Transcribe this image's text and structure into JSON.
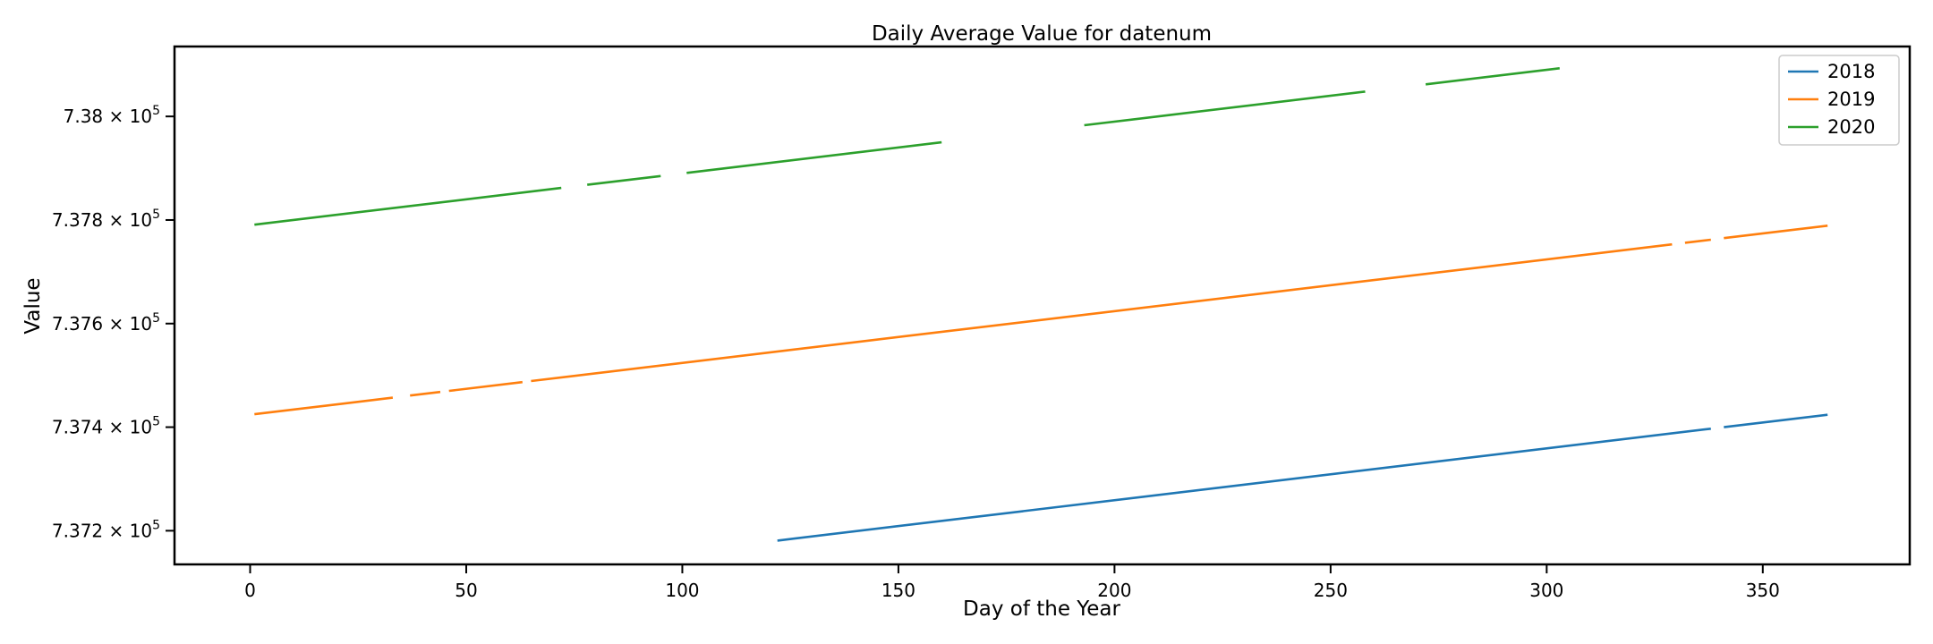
{
  "chart_data": {
    "type": "line",
    "title": "Daily Average Value for datenum",
    "xlabel": "Day of the Year",
    "ylabel": "Value",
    "xlim": [
      -17.5,
      384
    ],
    "ylim": [
      737135,
      738135
    ],
    "xticks": [
      0,
      50,
      100,
      150,
      200,
      250,
      300,
      350
    ],
    "yticks": [
      737200,
      737400,
      737600,
      737800,
      738000
    ],
    "ytick_labels": [
      {
        "mantissa": "7.372",
        "exponent": "5"
      },
      {
        "mantissa": "7.374",
        "exponent": "5"
      },
      {
        "mantissa": "7.376",
        "exponent": "5"
      },
      {
        "mantissa": "7.378",
        "exponent": "5"
      },
      {
        "mantissa": "7.38",
        "exponent": "5"
      }
    ],
    "ytick_prefix_times": "×",
    "ytick_base": "10",
    "legend_position": "top-right",
    "grid": false,
    "series": [
      {
        "name": "2018",
        "color": "#1f77b4",
        "segments": [
          {
            "x": [
              122,
              338
            ],
            "y": [
              737181,
              737397
            ]
          },
          {
            "x": [
              341,
              365
            ],
            "y": [
              737400,
              737424
            ]
          }
        ]
      },
      {
        "name": "2019",
        "color": "#ff7f0e",
        "segments": [
          {
            "x": [
              1,
              33
            ],
            "y": [
              737425,
              737457
            ]
          },
          {
            "x": [
              37,
              44
            ],
            "y": [
              737461,
              737468
            ]
          },
          {
            "x": [
              46,
              63
            ],
            "y": [
              737470,
              737487
            ]
          },
          {
            "x": [
              65,
              329
            ],
            "y": [
              737489,
              737753
            ]
          },
          {
            "x": [
              332,
              338
            ],
            "y": [
              737756,
              737762
            ]
          },
          {
            "x": [
              341,
              365
            ],
            "y": [
              737765,
              737789
            ]
          }
        ]
      },
      {
        "name": "2020",
        "color": "#2ca02c",
        "segments": [
          {
            "x": [
              1,
              72
            ],
            "y": [
              737791,
              737862
            ]
          },
          {
            "x": [
              78,
              95
            ],
            "y": [
              737868,
              737885
            ]
          },
          {
            "x": [
              101,
              160
            ],
            "y": [
              737891,
              737950
            ]
          },
          {
            "x": [
              193,
              258
            ],
            "y": [
              737983,
              738048
            ]
          },
          {
            "x": [
              272,
              303
            ],
            "y": [
              738062,
              738093
            ]
          }
        ]
      }
    ]
  }
}
